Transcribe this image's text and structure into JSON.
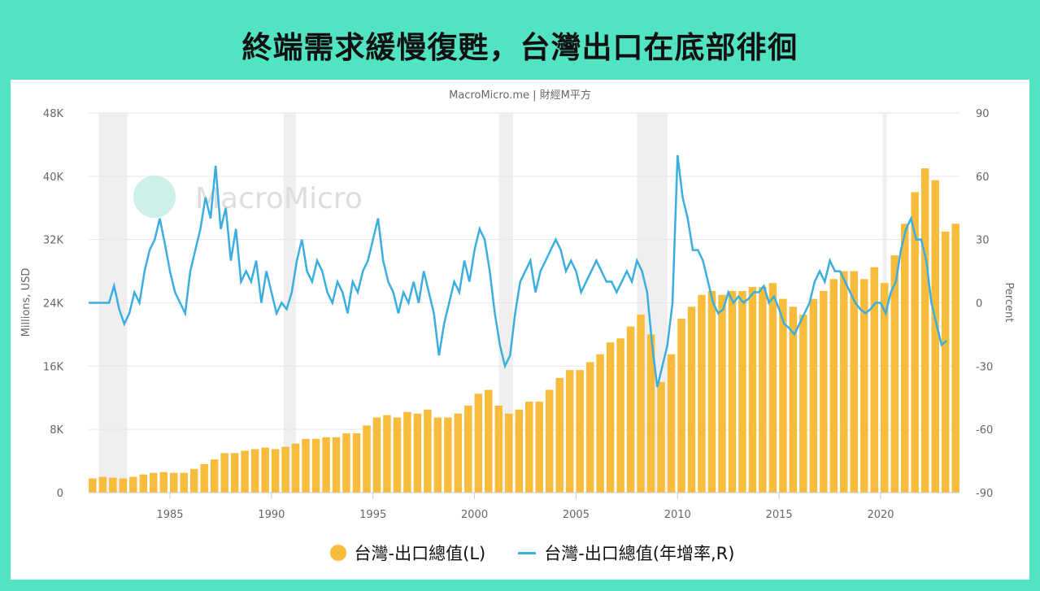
{
  "title": "終端需求緩慢復甦，台灣出口在底部徘徊",
  "source": "MacroMicro.me | 財經M平方",
  "watermark": "MacroMicro",
  "colors": {
    "bars": "#f8bc3d",
    "line": "#3aaee0",
    "recession": "#efefef",
    "background": "#52e3c2"
  },
  "chart_data": {
    "type": "bar+line",
    "xlabel": "",
    "ylabel_left": "Millions, USD",
    "ylabel_right": "Percent",
    "x_ticks": [
      "1985",
      "1990",
      "1995",
      "2000",
      "2005",
      "2010",
      "2015",
      "2020"
    ],
    "y_left_ticks": [
      "0",
      "8K",
      "16K",
      "24K",
      "32K",
      "40K",
      "48K"
    ],
    "y_right_ticks": [
      "-90",
      "-60",
      "-30",
      "0",
      "30",
      "60",
      "90"
    ],
    "ylim_left": [
      0,
      48000
    ],
    "ylim_right": [
      -90,
      90
    ],
    "xlim": [
      1981,
      2023.5
    ],
    "grid": true,
    "legend": "bottom",
    "recession_periods": [
      [
        1981.5,
        1982.9
      ],
      [
        1990.6,
        1991.2
      ],
      [
        2001.2,
        2001.9
      ],
      [
        2008,
        2009.5
      ],
      [
        2020.1,
        2020.3
      ]
    ],
    "series": [
      {
        "name": "台灣-出口總值(L)",
        "type": "bar",
        "axis": "left",
        "x_start": 1981,
        "x_step": 0.5,
        "values": [
          1800,
          2000,
          1900,
          1800,
          2000,
          2300,
          2500,
          2600,
          2500,
          2500,
          3000,
          3600,
          4200,
          5000,
          5000,
          5300,
          5500,
          5700,
          5500,
          5800,
          6200,
          6800,
          6800,
          7000,
          7000,
          7500,
          7500,
          8500,
          9500,
          9800,
          9500,
          10200,
          10000,
          10500,
          9500,
          9500,
          10000,
          11000,
          12500,
          13000,
          11000,
          10000,
          10500,
          11500,
          11500,
          13000,
          14500,
          15500,
          15500,
          16500,
          17500,
          19000,
          19500,
          21000,
          22500,
          20000,
          14000,
          17500,
          22000,
          23500,
          25000,
          25500,
          25000,
          25500,
          25500,
          26000,
          26000,
          26500,
          24500,
          23500,
          22500,
          24500,
          25500,
          27000,
          28000,
          28000,
          27000,
          28500,
          26500,
          30000,
          34000,
          38000,
          41000,
          39500,
          33000,
          34000
        ]
      },
      {
        "name": "台灣-出口總值(年增率,R)",
        "type": "line",
        "axis": "right",
        "x_start": 1981,
        "x_step": 0.25,
        "values": [
          0,
          0,
          0,
          0,
          0,
          8,
          -3,
          -10,
          -5,
          5,
          0,
          15,
          25,
          30,
          40,
          28,
          15,
          5,
          0,
          -5,
          15,
          25,
          35,
          50,
          40,
          65,
          35,
          45,
          20,
          35,
          10,
          15,
          10,
          20,
          0,
          15,
          5,
          -5,
          0,
          -3,
          5,
          20,
          30,
          15,
          10,
          20,
          15,
          5,
          0,
          10,
          5,
          -5,
          10,
          5,
          15,
          20,
          30,
          40,
          20,
          10,
          5,
          -5,
          5,
          0,
          10,
          0,
          15,
          5,
          -5,
          -25,
          -10,
          0,
          10,
          5,
          20,
          10,
          25,
          35,
          30,
          15,
          -5,
          -20,
          -30,
          -25,
          -5,
          10,
          15,
          20,
          5,
          15,
          20,
          25,
          30,
          25,
          15,
          20,
          15,
          5,
          10,
          15,
          20,
          15,
          10,
          10,
          5,
          10,
          15,
          10,
          20,
          15,
          5,
          -20,
          -40,
          -30,
          -20,
          0,
          70,
          50,
          40,
          25,
          25,
          20,
          10,
          0,
          -5,
          -3,
          5,
          0,
          3,
          0,
          2,
          5,
          5,
          8,
          0,
          3,
          -3,
          -10,
          -12,
          -15,
          -10,
          -5,
          0,
          10,
          15,
          10,
          20,
          15,
          15,
          10,
          5,
          0,
          -3,
          -5,
          -3,
          0,
          0,
          -5,
          5,
          10,
          25,
          35,
          40,
          30,
          30,
          20,
          0,
          -10,
          -20,
          -18
        ]
      }
    ]
  }
}
